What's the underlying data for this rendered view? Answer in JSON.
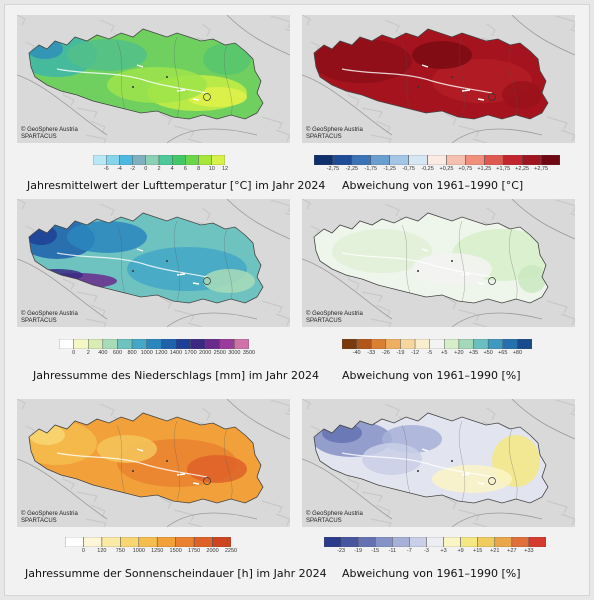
{
  "credit": {
    "line1": "© GeoSphere Austria",
    "line2": "SPARTACUS"
  },
  "panels": [
    {
      "caption": "Jahresmittelwert der Lufttemperatur [°C] im Jahr 2024",
      "ticks": [
        "-6",
        "-4",
        "-2",
        "0",
        "2",
        "4",
        "6",
        "8",
        "10",
        "12"
      ],
      "colors": [
        "#b8e8f5",
        "#86d3ec",
        "#4db8e0",
        "#7fb0bf",
        "#8ad0b4",
        "#4ec79a",
        "#42c76a",
        "#6cd64a",
        "#a6e53a",
        "#d8f04a"
      ],
      "style": "temp"
    },
    {
      "caption": "Abweichung von 1961–1990 [°C]",
      "ticks": [
        "-2,75",
        "-2,25",
        "-1,75",
        "-1,25",
        "-0,75",
        "-0,25",
        "+0,25",
        "+0,75",
        "+1,25",
        "+1,75",
        "+2,25",
        "+2,75"
      ],
      "colors": [
        "#0e2f6b",
        "#1e4d96",
        "#3b73b8",
        "#6a9ed1",
        "#a3c6e6",
        "#d6e6f3",
        "#fbe9e3",
        "#f6c0b0",
        "#ef8f7c",
        "#de5a50",
        "#c1262f",
        "#9e1420",
        "#6e0812"
      ],
      "style": "tdev"
    },
    {
      "caption": "Jahressumme des Niederschlags [mm] im Jahr 2024",
      "ticks": [
        "0",
        "2",
        "400",
        "600",
        "800",
        "1000",
        "1200",
        "1400",
        "1700",
        "2000",
        "2500",
        "3000",
        "3500"
      ],
      "colors": [
        "#ffffff",
        "#f5f7c6",
        "#d8ecb6",
        "#a8dcb9",
        "#6ec3c1",
        "#43a7c7",
        "#2a86bd",
        "#1e62ab",
        "#1e3f95",
        "#3a2a84",
        "#6a2a8c",
        "#9a3b9b",
        "#cf72a8"
      ],
      "style": "precip"
    },
    {
      "caption": "Abweichung von 1961–1990 [%]",
      "ticks": [
        "-40",
        "-33",
        "-26",
        "-19",
        "-12",
        "-5",
        "+5",
        "+20",
        "+35",
        "+50",
        "+65",
        "+80"
      ],
      "colors": [
        "#7b3a0d",
        "#b0561a",
        "#d98035",
        "#efaf62",
        "#f7d79d",
        "#faeece",
        "#f3f3f3",
        "#d6eec9",
        "#a3d9b8",
        "#6cbfbf",
        "#3f98bf",
        "#2670ad",
        "#1a4a8e"
      ],
      "style": "pdev"
    },
    {
      "caption": "Jahressumme der Sonnenscheindauer [h] im Jahr 2024",
      "ticks": [
        "0",
        "120",
        "750",
        "1000",
        "1250",
        "1500",
        "1750",
        "2000",
        "2250"
      ],
      "colors": [
        "#ffffff",
        "#fdf6d9",
        "#fbe9a6",
        "#f8d673",
        "#f5bd4d",
        "#f1a03a",
        "#ea8130",
        "#de6128",
        "#cf4420"
      ],
      "style": "sun"
    },
    {
      "caption": "Abweichung von 1961–1990 [%]",
      "ticks": [
        "-23",
        "-19",
        "-15",
        "-11",
        "-7",
        "-3",
        "+3",
        "+9",
        "+15",
        "+21",
        "+27",
        "+33"
      ],
      "colors": [
        "#2b3a8a",
        "#47549e",
        "#6472b3",
        "#8592c7",
        "#a7b1d8",
        "#c9cfe7",
        "#eceef4",
        "#fbf5c6",
        "#f5e783",
        "#efcc5e",
        "#e9a64a",
        "#df6f3b",
        "#d53a2f"
      ],
      "style": "sdev"
    }
  ]
}
